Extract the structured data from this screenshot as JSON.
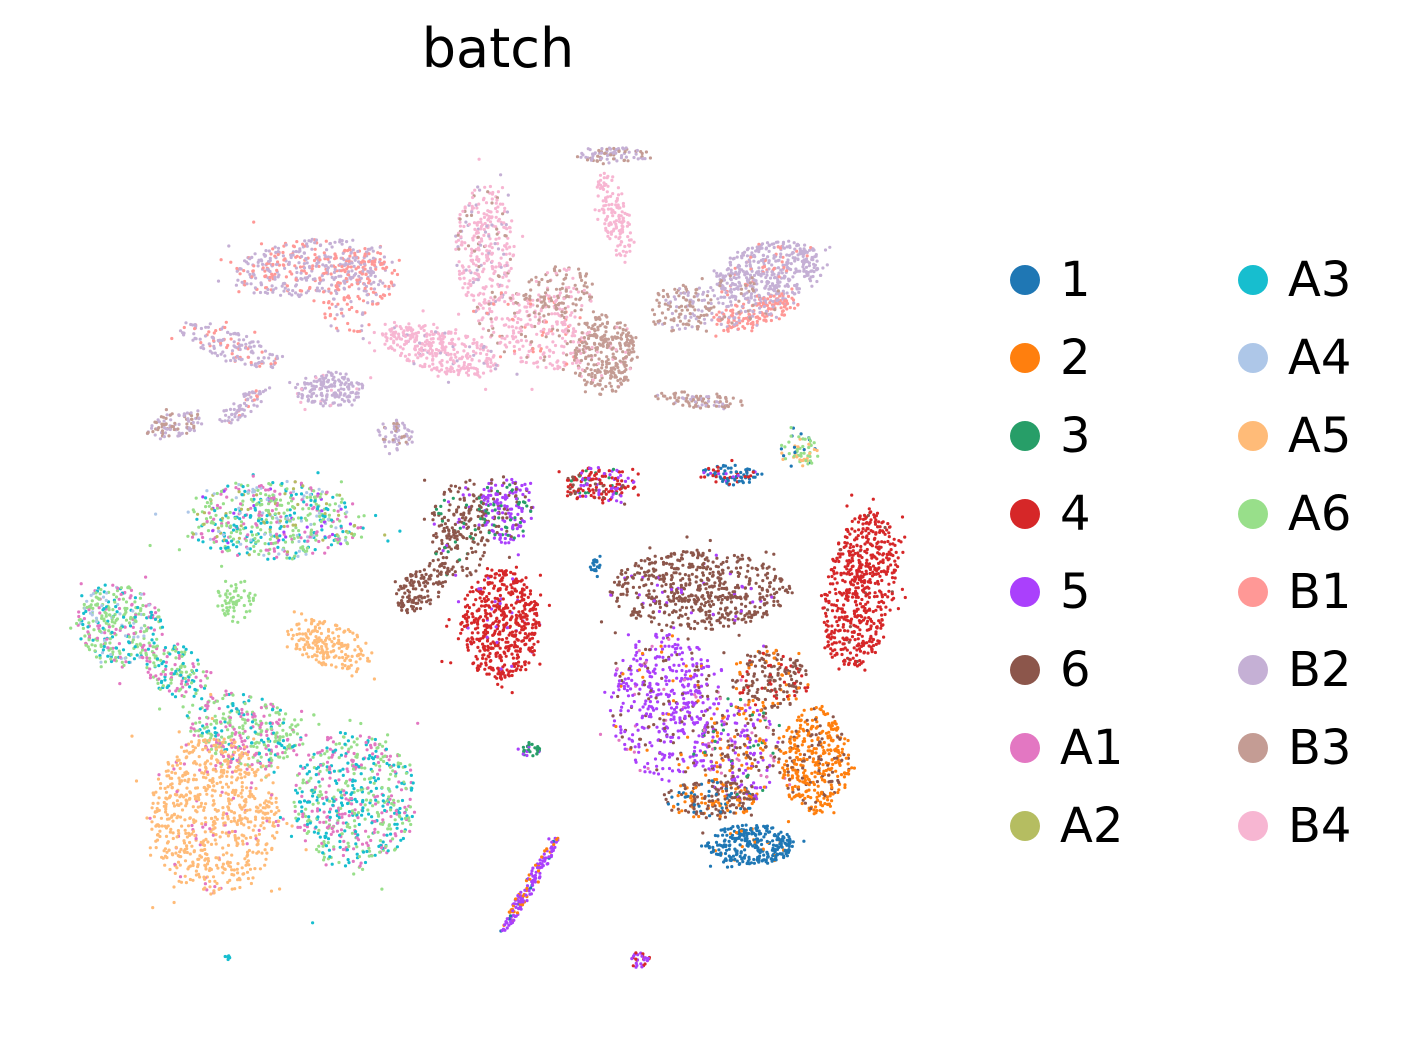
{
  "chart_data": {
    "type": "scatter",
    "title": "batch",
    "xlabel": "",
    "ylabel": "",
    "grid": false,
    "axes_visible": false,
    "legend_placement": "right",
    "legend_columns": 2,
    "series": [
      {
        "name": "1",
        "color": "#1f77b4"
      },
      {
        "name": "2",
        "color": "#ff7f0e"
      },
      {
        "name": "3",
        "color": "#279e68"
      },
      {
        "name": "4",
        "color": "#d62728"
      },
      {
        "name": "5",
        "color": "#aa40fc"
      },
      {
        "name": "6",
        "color": "#8c564b"
      },
      {
        "name": "A1",
        "color": "#e377c2"
      },
      {
        "name": "A2",
        "color": "#b5bd61"
      },
      {
        "name": "A3",
        "color": "#17becf"
      },
      {
        "name": "A4",
        "color": "#aec7e8"
      },
      {
        "name": "A5",
        "color": "#ffbb78"
      },
      {
        "name": "A6",
        "color": "#98df8a"
      },
      {
        "name": "B1",
        "color": "#ff9896"
      },
      {
        "name": "B2",
        "color": "#c5b0d5"
      },
      {
        "name": "B3",
        "color": "#c49c94"
      },
      {
        "name": "B4",
        "color": "#f7b6d2"
      }
    ],
    "clusters": [
      {
        "cx": 310,
        "cy": 268,
        "rx": 75,
        "ry": 28,
        "rot": -5,
        "n": 420,
        "mix": {
          "B2": 0.6,
          "B1": 0.4
        }
      },
      {
        "cx": 360,
        "cy": 290,
        "rx": 30,
        "ry": 50,
        "rot": 30,
        "n": 160,
        "mix": {
          "B1": 0.6,
          "B2": 0.4
        }
      },
      {
        "cx": 230,
        "cy": 345,
        "rx": 55,
        "ry": 15,
        "rot": 20,
        "n": 150,
        "mix": {
          "B2": 0.7,
          "B1": 0.3
        }
      },
      {
        "cx": 330,
        "cy": 390,
        "rx": 35,
        "ry": 18,
        "rot": 0,
        "n": 170,
        "mix": {
          "B2": 0.9,
          "B4": 0.1
        }
      },
      {
        "cx": 175,
        "cy": 425,
        "rx": 30,
        "ry": 12,
        "rot": -10,
        "n": 100,
        "mix": {
          "B2": 0.6,
          "B3": 0.4
        }
      },
      {
        "cx": 245,
        "cy": 405,
        "rx": 30,
        "ry": 10,
        "rot": -35,
        "n": 70,
        "mix": {
          "B2": 0.8,
          "B1": 0.2
        }
      },
      {
        "cx": 395,
        "cy": 435,
        "rx": 18,
        "ry": 15,
        "rot": 0,
        "n": 60,
        "mix": {
          "B2": 0.7,
          "B3": 0.3
        }
      },
      {
        "cx": 440,
        "cy": 350,
        "rx": 60,
        "ry": 22,
        "rot": 15,
        "n": 330,
        "mix": {
          "B4": 0.9,
          "B2": 0.1
        }
      },
      {
        "cx": 485,
        "cy": 250,
        "rx": 30,
        "ry": 65,
        "rot": 0,
        "n": 320,
        "mix": {
          "B4": 0.75,
          "B2": 0.15,
          "B3": 0.1
        }
      },
      {
        "cx": 535,
        "cy": 330,
        "rx": 60,
        "ry": 35,
        "rot": 20,
        "n": 300,
        "mix": {
          "B4": 0.7,
          "B3": 0.2,
          "B1": 0.1
        }
      },
      {
        "cx": 610,
        "cy": 155,
        "rx": 35,
        "ry": 8,
        "rot": 0,
        "n": 90,
        "mix": {
          "B2": 0.5,
          "B3": 0.5
        }
      },
      {
        "cx": 615,
        "cy": 215,
        "rx": 14,
        "ry": 45,
        "rot": -15,
        "n": 140,
        "mix": {
          "B4": 1.0
        }
      },
      {
        "cx": 605,
        "cy": 355,
        "rx": 30,
        "ry": 40,
        "rot": 0,
        "n": 300,
        "mix": {
          "B3": 0.9,
          "B4": 0.1
        }
      },
      {
        "cx": 560,
        "cy": 290,
        "rx": 35,
        "ry": 25,
        "rot": 0,
        "n": 120,
        "mix": {
          "B3": 0.7,
          "B4": 0.3
        }
      },
      {
        "cx": 680,
        "cy": 310,
        "rx": 30,
        "ry": 25,
        "rot": 0,
        "n": 110,
        "mix": {
          "B3": 0.7,
          "B2": 0.3
        }
      },
      {
        "cx": 700,
        "cy": 400,
        "rx": 45,
        "ry": 8,
        "rot": 5,
        "n": 90,
        "mix": {
          "B3": 0.7,
          "B2": 0.3
        }
      },
      {
        "cx": 770,
        "cy": 272,
        "rx": 55,
        "ry": 30,
        "rot": -10,
        "n": 420,
        "mix": {
          "B2": 0.9,
          "B1": 0.1
        }
      },
      {
        "cx": 755,
        "cy": 312,
        "rx": 45,
        "ry": 15,
        "rot": -15,
        "n": 150,
        "mix": {
          "B1": 0.9,
          "B2": 0.1
        }
      },
      {
        "cx": 730,
        "cy": 300,
        "rx": 55,
        "ry": 25,
        "rot": 0,
        "n": 120,
        "mix": {
          "B2": 0.7,
          "B3": 0.3
        }
      },
      {
        "cx": 275,
        "cy": 520,
        "rx": 90,
        "ry": 40,
        "rot": 0,
        "n": 600,
        "mix": {
          "A6": 0.35,
          "A3": 0.2,
          "A1": 0.2,
          "A4": 0.1,
          "A2": 0.1,
          "5": 0.05
        }
      },
      {
        "cx": 120,
        "cy": 625,
        "rx": 45,
        "ry": 40,
        "rot": 30,
        "n": 350,
        "mix": {
          "A6": 0.5,
          "A3": 0.2,
          "A1": 0.2,
          "A4": 0.1
        }
      },
      {
        "cx": 175,
        "cy": 670,
        "rx": 35,
        "ry": 25,
        "rot": 30,
        "n": 150,
        "mix": {
          "A6": 0.4,
          "A1": 0.3,
          "A3": 0.3
        }
      },
      {
        "cx": 235,
        "cy": 600,
        "rx": 20,
        "ry": 22,
        "rot": 0,
        "n": 60,
        "mix": {
          "A6": 1.0
        }
      },
      {
        "cx": 330,
        "cy": 645,
        "rx": 45,
        "ry": 22,
        "rot": 20,
        "n": 200,
        "mix": {
          "A5": 1.0
        }
      },
      {
        "cx": 245,
        "cy": 730,
        "rx": 60,
        "ry": 35,
        "rot": 15,
        "n": 360,
        "mix": {
          "A6": 0.5,
          "A1": 0.3,
          "A3": 0.2
        }
      },
      {
        "cx": 355,
        "cy": 800,
        "rx": 62,
        "ry": 70,
        "rot": 0,
        "n": 620,
        "mix": {
          "A3": 0.35,
          "A6": 0.35,
          "A1": 0.3
        }
      },
      {
        "cx": 215,
        "cy": 815,
        "rx": 65,
        "ry": 80,
        "rot": 0,
        "n": 750,
        "mix": {
          "A5": 0.92,
          "A1": 0.08
        }
      },
      {
        "cx": 460,
        "cy": 530,
        "rx": 30,
        "ry": 50,
        "rot": 0,
        "n": 220,
        "mix": {
          "6": 0.8,
          "3": 0.1,
          "5": 0.1
        }
      },
      {
        "cx": 420,
        "cy": 590,
        "rx": 30,
        "ry": 18,
        "rot": -40,
        "n": 120,
        "mix": {
          "6": 1.0
        }
      },
      {
        "cx": 505,
        "cy": 510,
        "rx": 28,
        "ry": 35,
        "rot": 0,
        "n": 200,
        "mix": {
          "5": 0.6,
          "6": 0.2,
          "3": 0.2
        }
      },
      {
        "cx": 500,
        "cy": 625,
        "rx": 40,
        "ry": 55,
        "rot": 0,
        "n": 550,
        "mix": {
          "4": 0.95,
          "5": 0.05
        }
      },
      {
        "cx": 600,
        "cy": 485,
        "rx": 35,
        "ry": 18,
        "rot": 0,
        "n": 180,
        "mix": {
          "4": 0.5,
          "5": 0.3,
          "3": 0.1,
          "6": 0.1
        }
      },
      {
        "cx": 595,
        "cy": 565,
        "rx": 5,
        "ry": 10,
        "rot": 0,
        "n": 20,
        "mix": {
          "1": 1.0
        }
      },
      {
        "cx": 530,
        "cy": 750,
        "rx": 12,
        "ry": 6,
        "rot": 0,
        "n": 30,
        "mix": {
          "3": 0.6,
          "5": 0.4
        }
      },
      {
        "cx": 530,
        "cy": 885,
        "rx": 55,
        "ry": 6,
        "rot": -60,
        "n": 160,
        "mix": {
          "5": 0.7,
          "2": 0.2,
          "1": 0.1
        }
      },
      {
        "cx": 640,
        "cy": 960,
        "rx": 10,
        "ry": 8,
        "rot": 0,
        "n": 30,
        "mix": {
          "4": 0.5,
          "5": 0.5
        }
      },
      {
        "cx": 730,
        "cy": 475,
        "rx": 30,
        "ry": 10,
        "rot": 0,
        "n": 90,
        "mix": {
          "1": 0.6,
          "4": 0.3,
          "5": 0.1
        }
      },
      {
        "cx": 800,
        "cy": 450,
        "rx": 20,
        "ry": 18,
        "rot": 0,
        "n": 70,
        "mix": {
          "A6": 0.5,
          "A5": 0.3,
          "1": 0.2
        }
      },
      {
        "cx": 700,
        "cy": 590,
        "rx": 90,
        "ry": 40,
        "rot": 0,
        "n": 600,
        "mix": {
          "6": 0.95,
          "5": 0.05
        }
      },
      {
        "cx": 770,
        "cy": 680,
        "rx": 40,
        "ry": 30,
        "rot": 0,
        "n": 200,
        "mix": {
          "6": 0.6,
          "4": 0.2,
          "2": 0.2
        }
      },
      {
        "cx": 860,
        "cy": 590,
        "rx": 35,
        "ry": 80,
        "rot": 10,
        "n": 600,
        "mix": {
          "4": 0.98,
          "6": 0.02
        }
      },
      {
        "cx": 665,
        "cy": 705,
        "rx": 55,
        "ry": 75,
        "rot": 0,
        "n": 500,
        "mix": {
          "5": 0.75,
          "6": 0.15,
          "A1": 0.05,
          "2": 0.05
        }
      },
      {
        "cx": 740,
        "cy": 750,
        "rx": 40,
        "ry": 50,
        "rot": 0,
        "n": 300,
        "mix": {
          "5": 0.3,
          "6": 0.3,
          "2": 0.2,
          "A1": 0.1,
          "3": 0.1
        }
      },
      {
        "cx": 815,
        "cy": 760,
        "rx": 35,
        "ry": 55,
        "rot": 0,
        "n": 400,
        "mix": {
          "2": 0.8,
          "6": 0.2
        }
      },
      {
        "cx": 750,
        "cy": 845,
        "rx": 45,
        "ry": 20,
        "rot": 0,
        "n": 300,
        "mix": {
          "1": 0.95,
          "2": 0.05
        }
      },
      {
        "cx": 710,
        "cy": 800,
        "rx": 45,
        "ry": 20,
        "rot": 0,
        "n": 200,
        "mix": {
          "6": 0.5,
          "2": 0.3,
          "1": 0.2
        }
      },
      {
        "cx": 228,
        "cy": 957,
        "rx": 3,
        "ry": 3,
        "rot": 0,
        "n": 6,
        "mix": {
          "A3": 1.0
        }
      }
    ]
  }
}
